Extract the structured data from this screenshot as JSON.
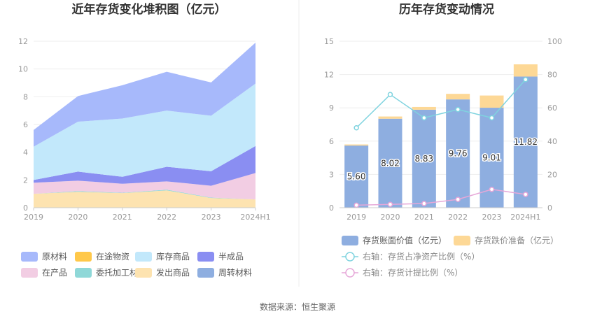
{
  "chart_data": [
    {
      "type": "area",
      "title": "近年存货变化堆积图（亿元）",
      "stacked": true,
      "categories": [
        "2019",
        "2020",
        "2021",
        "2022",
        "2023",
        "2024H1"
      ],
      "ylim": [
        0,
        12
      ],
      "yticks": [
        "0",
        "2",
        "4",
        "6",
        "8",
        "10",
        "12"
      ],
      "grid": true,
      "legend_position": "bottom",
      "series": [
        {
          "name": "发出商品",
          "color": "#fde3b0",
          "values": [
            1.0,
            1.15,
            1.05,
            1.25,
            0.7,
            0.6
          ]
        },
        {
          "name": "委托加工材料",
          "color": "#8fd8d8",
          "values": [
            0.0,
            0.05,
            0.03,
            0.05,
            0.03,
            0.0
          ]
        },
        {
          "name": "在产品",
          "color": "#f2cde3",
          "values": [
            0.8,
            0.75,
            0.65,
            0.6,
            0.85,
            1.9
          ]
        },
        {
          "name": "在途物资",
          "color": "#ffc84a",
          "values": [
            0.0,
            0.0,
            0.0,
            0.0,
            0.0,
            0.0
          ]
        },
        {
          "name": "周转材料",
          "color": "#8eaee0",
          "values": [
            0.0,
            0.0,
            0.0,
            0.0,
            0.0,
            0.0
          ]
        },
        {
          "name": "半成品",
          "color": "#8a8ef2",
          "values": [
            0.2,
            0.65,
            0.5,
            1.05,
            1.05,
            1.95
          ]
        },
        {
          "name": "库存商品",
          "color": "#c2e8fb",
          "values": [
            2.4,
            3.6,
            4.2,
            4.05,
            4.0,
            4.5
          ]
        },
        {
          "name": "原材料",
          "color": "#a7b9fb",
          "values": [
            1.2,
            1.85,
            2.4,
            2.8,
            2.4,
            2.95
          ]
        }
      ],
      "legend": [
        {
          "name": "原材料",
          "color": "#a7b9fb"
        },
        {
          "name": "在途物资",
          "color": "#ffc84a"
        },
        {
          "name": "库存商品",
          "color": "#c2e8fb"
        },
        {
          "name": "半成品",
          "color": "#8a8ef2"
        },
        {
          "name": "在产品",
          "color": "#f2cde3"
        },
        {
          "name": "委托加工材料",
          "color": "#8fd8d8"
        },
        {
          "name": "发出商品",
          "color": "#fde3b0"
        },
        {
          "name": "周转材料",
          "color": "#8eaee0"
        }
      ]
    },
    {
      "type": "bar+line",
      "title": "历年存货变动情况",
      "categories": [
        "2019",
        "2020",
        "2021",
        "2022",
        "2023",
        "2024H1"
      ],
      "ylim_left": [
        0,
        15
      ],
      "yticks_left": [
        "0",
        "3",
        "6",
        "9",
        "12",
        "15"
      ],
      "ylim_right": [
        0,
        100
      ],
      "yticks_right": [
        "0",
        "20",
        "40",
        "60",
        "80",
        "100"
      ],
      "grid": true,
      "legend_position": "bottom",
      "bars": [
        {
          "name": "存货账面价值（亿元）",
          "color": "#8eaee0",
          "values": [
            5.6,
            8.02,
            8.83,
            9.76,
            9.01,
            11.82
          ],
          "labels": [
            "5.60",
            "8.02",
            "8.83",
            "9.76",
            "9.01",
            "11.82"
          ]
        },
        {
          "name": "存货跌价准备（亿元）",
          "color": "#fdd896",
          "values": [
            0.1,
            0.2,
            0.25,
            0.5,
            1.1,
            1.1
          ]
        }
      ],
      "lines": [
        {
          "name": "右轴：存货占净资产比例（%）",
          "color": "#7fd3df",
          "values": [
            48,
            68,
            54,
            59,
            54,
            77
          ]
        },
        {
          "name": "右轴：存货计提比例（%）",
          "color": "#e6a7d8",
          "values": [
            1.5,
            2,
            2.5,
            5,
            11,
            8
          ]
        }
      ]
    }
  ],
  "source": "数据来源：恒生聚源"
}
